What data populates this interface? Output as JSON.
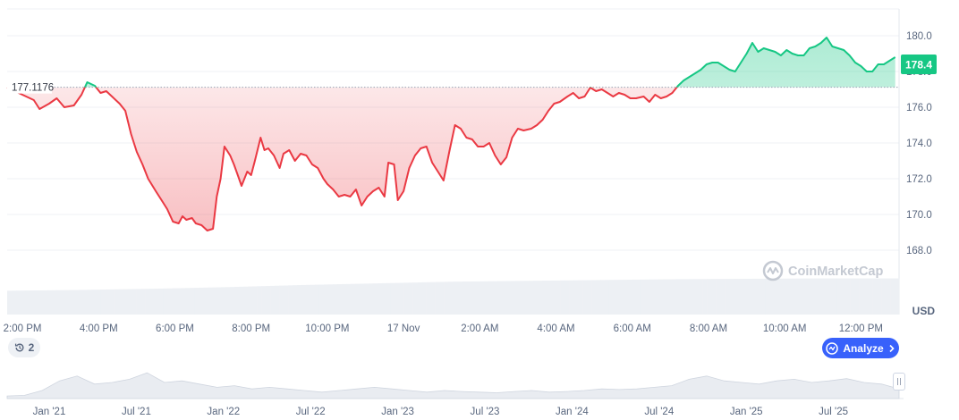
{
  "chart_data": {
    "type": "line",
    "unit": "USD",
    "current_price": "178.4",
    "reference_price": 177.1176,
    "reference_label": "177.1176",
    "ylim": [
      167.0,
      181.5
    ],
    "y_ticks": [
      168.0,
      170.0,
      172.0,
      174.0,
      176.0,
      178.0,
      180.0
    ],
    "y_tick_labels": [
      "168.0",
      "170.0",
      "172.0",
      "174.0",
      "176.0",
      "178.0",
      "180.0"
    ],
    "x_range_hours": [
      13.6,
      37.0
    ],
    "x_ticks": [
      {
        "h": 14,
        "label": "2:00 PM"
      },
      {
        "h": 16,
        "label": "4:00 PM"
      },
      {
        "h": 18,
        "label": "6:00 PM"
      },
      {
        "h": 20,
        "label": "8:00 PM"
      },
      {
        "h": 22,
        "label": "10:00 PM"
      },
      {
        "h": 24,
        "label": "17 Nov"
      },
      {
        "h": 26,
        "label": "2:00 AM"
      },
      {
        "h": 28,
        "label": "4:00 AM"
      },
      {
        "h": 30,
        "label": "6:00 AM"
      },
      {
        "h": 32,
        "label": "8:00 AM"
      },
      {
        "h": 34,
        "label": "10:00 AM"
      },
      {
        "h": 36,
        "label": "12:00 PM"
      }
    ],
    "series": [
      {
        "points": [
          [
            13.6,
            177.1
          ],
          [
            14.3,
            176.4
          ],
          [
            14.45,
            175.9
          ],
          [
            14.7,
            176.2
          ],
          [
            14.9,
            176.5
          ],
          [
            15.1,
            176.0
          ],
          [
            15.35,
            176.1
          ],
          [
            15.55,
            176.7
          ],
          [
            15.7,
            177.4
          ],
          [
            15.9,
            177.2
          ],
          [
            16.05,
            176.8
          ],
          [
            16.2,
            176.9
          ],
          [
            16.35,
            176.6
          ],
          [
            16.55,
            176.2
          ],
          [
            16.7,
            175.8
          ],
          [
            16.85,
            174.5
          ],
          [
            17.0,
            173.5
          ],
          [
            17.15,
            172.8
          ],
          [
            17.3,
            172.0
          ],
          [
            17.5,
            171.3
          ],
          [
            17.65,
            170.8
          ],
          [
            17.8,
            170.3
          ],
          [
            17.95,
            169.6
          ],
          [
            18.1,
            169.5
          ],
          [
            18.2,
            169.9
          ],
          [
            18.3,
            169.7
          ],
          [
            18.45,
            169.8
          ],
          [
            18.55,
            169.5
          ],
          [
            18.7,
            169.4
          ],
          [
            18.85,
            169.1
          ],
          [
            19.0,
            169.2
          ],
          [
            19.1,
            171.0
          ],
          [
            19.2,
            172.0
          ],
          [
            19.3,
            173.8
          ],
          [
            19.45,
            173.3
          ],
          [
            19.55,
            172.8
          ],
          [
            19.65,
            172.2
          ],
          [
            19.75,
            171.6
          ],
          [
            19.9,
            172.4
          ],
          [
            20.0,
            172.2
          ],
          [
            20.1,
            173.0
          ],
          [
            20.25,
            174.3
          ],
          [
            20.35,
            173.6
          ],
          [
            20.45,
            173.7
          ],
          [
            20.6,
            173.3
          ],
          [
            20.75,
            172.6
          ],
          [
            20.85,
            173.4
          ],
          [
            21.0,
            173.6
          ],
          [
            21.15,
            173.0
          ],
          [
            21.3,
            173.4
          ],
          [
            21.45,
            173.3
          ],
          [
            21.6,
            172.8
          ],
          [
            21.75,
            172.6
          ],
          [
            21.9,
            172.0
          ],
          [
            22.0,
            171.7
          ],
          [
            22.15,
            171.4
          ],
          [
            22.3,
            171.0
          ],
          [
            22.45,
            171.1
          ],
          [
            22.6,
            171.0
          ],
          [
            22.75,
            171.4
          ],
          [
            22.9,
            170.5
          ],
          [
            23.05,
            171.0
          ],
          [
            23.2,
            171.3
          ],
          [
            23.35,
            171.5
          ],
          [
            23.5,
            171.0
          ],
          [
            23.6,
            172.9
          ],
          [
            23.75,
            172.8
          ],
          [
            23.85,
            170.8
          ],
          [
            24.0,
            171.3
          ],
          [
            24.15,
            172.6
          ],
          [
            24.3,
            173.3
          ],
          [
            24.45,
            173.7
          ],
          [
            24.6,
            173.8
          ],
          [
            24.75,
            172.9
          ],
          [
            24.9,
            172.4
          ],
          [
            25.05,
            171.9
          ],
          [
            25.2,
            173.5
          ],
          [
            25.35,
            175.0
          ],
          [
            25.5,
            174.8
          ],
          [
            25.65,
            174.3
          ],
          [
            25.8,
            174.2
          ],
          [
            25.95,
            173.8
          ],
          [
            26.1,
            173.8
          ],
          [
            26.25,
            174.0
          ],
          [
            26.4,
            173.3
          ],
          [
            26.55,
            172.8
          ],
          [
            26.7,
            173.2
          ],
          [
            26.85,
            174.3
          ],
          [
            27.0,
            174.8
          ],
          [
            27.15,
            174.7
          ],
          [
            27.35,
            174.8
          ],
          [
            27.5,
            175.0
          ],
          [
            27.65,
            175.3
          ],
          [
            27.8,
            175.8
          ],
          [
            27.95,
            176.2
          ],
          [
            28.1,
            176.3
          ],
          [
            28.3,
            176.6
          ],
          [
            28.45,
            176.8
          ],
          [
            28.6,
            176.5
          ],
          [
            28.75,
            176.6
          ],
          [
            28.9,
            177.1
          ],
          [
            29.05,
            176.9
          ],
          [
            29.2,
            177.0
          ],
          [
            29.35,
            176.8
          ],
          [
            29.5,
            176.6
          ],
          [
            29.65,
            176.8
          ],
          [
            29.8,
            176.7
          ],
          [
            29.95,
            176.5
          ],
          [
            30.1,
            176.5
          ],
          [
            30.3,
            176.6
          ],
          [
            30.45,
            176.3
          ],
          [
            30.6,
            176.7
          ],
          [
            30.75,
            176.5
          ],
          [
            30.9,
            176.6
          ],
          [
            31.05,
            176.8
          ],
          [
            31.2,
            177.2
          ],
          [
            31.35,
            177.5
          ],
          [
            31.5,
            177.7
          ],
          [
            31.65,
            177.9
          ],
          [
            31.8,
            178.1
          ],
          [
            31.95,
            178.4
          ],
          [
            32.1,
            178.5
          ],
          [
            32.25,
            178.5
          ],
          [
            32.4,
            178.3
          ],
          [
            32.55,
            178.1
          ],
          [
            32.7,
            178.0
          ],
          [
            32.85,
            178.5
          ],
          [
            33.0,
            179.0
          ],
          [
            33.15,
            179.6
          ],
          [
            33.3,
            179.1
          ],
          [
            33.45,
            179.3
          ],
          [
            33.6,
            179.2
          ],
          [
            33.75,
            179.1
          ],
          [
            33.9,
            178.9
          ],
          [
            34.05,
            179.2
          ],
          [
            34.2,
            179.0
          ],
          [
            34.35,
            178.9
          ],
          [
            34.5,
            178.9
          ],
          [
            34.65,
            179.3
          ],
          [
            34.8,
            179.4
          ],
          [
            34.95,
            179.6
          ],
          [
            35.1,
            179.9
          ],
          [
            35.25,
            179.4
          ],
          [
            35.4,
            179.3
          ],
          [
            35.55,
            179.2
          ],
          [
            35.7,
            178.9
          ],
          [
            35.85,
            178.5
          ],
          [
            36.0,
            178.3
          ],
          [
            36.15,
            178.0
          ],
          [
            36.3,
            178.0
          ],
          [
            36.45,
            178.4
          ],
          [
            36.6,
            178.4
          ],
          [
            36.75,
            178.6
          ],
          [
            36.9,
            178.8
          ]
        ]
      }
    ],
    "colors": {
      "up": "#16c784",
      "down": "#ea3943",
      "axis": "#58667e",
      "grid": "#eff2f5",
      "accent": "#3861fb"
    },
    "volume_share": [
      0.58,
      0.6,
      0.63,
      0.67,
      0.72,
      0.76,
      0.8,
      0.82,
      0.84,
      0.86,
      0.87,
      0.88,
      0.88
    ]
  },
  "timeline": {
    "labels": [
      "Jan '21",
      "Jul '21",
      "Jan '22",
      "Jul '22",
      "Jan '23",
      "Jul '23",
      "Jan '24",
      "Jul '24",
      "Jan '25",
      "Jul '25"
    ],
    "profile": [
      0.08,
      0.1,
      0.25,
      0.55,
      0.7,
      0.45,
      0.5,
      0.6,
      0.8,
      0.5,
      0.55,
      0.45,
      0.35,
      0.4,
      0.3,
      0.35,
      0.3,
      0.25,
      0.2,
      0.25,
      0.3,
      0.35,
      0.3,
      0.25,
      0.2,
      0.25,
      0.22,
      0.2,
      0.18,
      0.22,
      0.25,
      0.2,
      0.22,
      0.25,
      0.3,
      0.28,
      0.3,
      0.35,
      0.4,
      0.6,
      0.7,
      0.55,
      0.5,
      0.45,
      0.55,
      0.6,
      0.5,
      0.55,
      0.62,
      0.5,
      0.45,
      0.3
    ]
  },
  "watermark": {
    "brand": "CoinMarketCap"
  },
  "buttons": {
    "history_count": "2",
    "analyze_label": "Analyze"
  }
}
